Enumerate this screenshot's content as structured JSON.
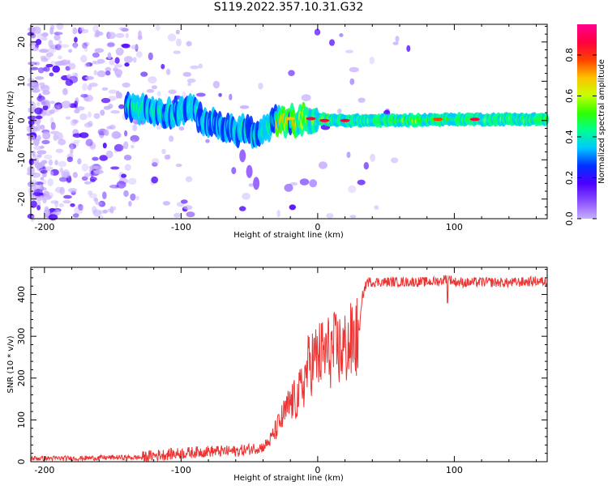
{
  "title": "S119.2022.357.10.31.G32",
  "chart_data": [
    {
      "type": "heatmap",
      "xlabel": "Height of straight line (km)",
      "ylabel": "Frequency (Hz)",
      "xlim": [
        -210,
        168
      ],
      "ylim": [
        -25,
        24.5
      ],
      "xticks": [
        -200,
        -100,
        0,
        100
      ],
      "yticks": [
        -20,
        -10,
        0,
        10,
        20
      ],
      "colorbar": {
        "label": "Normalized spectral amplitude",
        "range": [
          0,
          0.95
        ],
        "ticks": [
          "0.0",
          "0.2",
          "0.4",
          "0.6",
          "0.8"
        ],
        "colormap": [
          "#c8b0ff",
          "#8a4dff",
          "#4b00ff",
          "#0030ff",
          "#00c8ff",
          "#00ff90",
          "#30ff00",
          "#c8ff00",
          "#ffc000",
          "#ff4000",
          "#ff0040",
          "#ff0090"
        ]
      },
      "ridge": [
        [
          -140,
          4
        ],
        [
          -130,
          3
        ],
        [
          -120,
          2.5
        ],
        [
          -110,
          2
        ],
        [
          -100,
          2.5
        ],
        [
          -95,
          3.5
        ],
        [
          -90,
          2
        ],
        [
          -85,
          0.5
        ],
        [
          -80,
          -0.5
        ],
        [
          -70,
          -1.5
        ],
        [
          -60,
          -3
        ],
        [
          -55,
          -2
        ],
        [
          -50,
          -2.5
        ],
        [
          -45,
          -4
        ],
        [
          -40,
          -3
        ],
        [
          -35,
          -1
        ],
        [
          -30,
          0
        ],
        [
          -25,
          -0.5
        ],
        [
          -20,
          0.5
        ],
        [
          -15,
          -0.5
        ],
        [
          -10,
          0.5
        ],
        [
          -5,
          -0.5
        ],
        [
          0,
          0.5
        ],
        [
          10,
          0
        ],
        [
          50,
          0
        ],
        [
          100,
          0.3
        ],
        [
          168,
          0.3
        ]
      ],
      "branch": [
        [
          -55,
          -9
        ],
        [
          -50,
          -13
        ],
        [
          -45,
          -16
        ]
      ]
    },
    {
      "type": "line",
      "xlabel": "Height of straight line (km)",
      "ylabel": "SNR (10 * v/v)",
      "xlim": [
        -210,
        168
      ],
      "ylim": [
        0,
        465
      ],
      "xticks": [
        -200,
        -100,
        0,
        100
      ],
      "yticks": [
        0,
        100,
        200,
        300,
        400
      ],
      "color": "#ee3333",
      "series": [
        {
          "x": [
            -210,
            -180,
            -150,
            -130,
            -120,
            -100,
            -80,
            -60,
            -50,
            -40,
            -35,
            -30,
            -25,
            -20,
            -15,
            -10,
            -8,
            -5,
            0,
            5,
            10,
            20,
            30,
            33,
            36,
            40,
            60,
            80,
            90,
            95,
            100,
            110,
            120,
            140,
            160,
            168
          ],
          "y": [
            8,
            8,
            10,
            10,
            15,
            20,
            25,
            25,
            30,
            35,
            50,
            80,
            110,
            140,
            150,
            190,
            220,
            240,
            250,
            260,
            265,
            270,
            300,
            400,
            430,
            430,
            430,
            430,
            432,
            440,
            430,
            428,
            430,
            428,
            432,
            430
          ]
        }
      ]
    }
  ]
}
